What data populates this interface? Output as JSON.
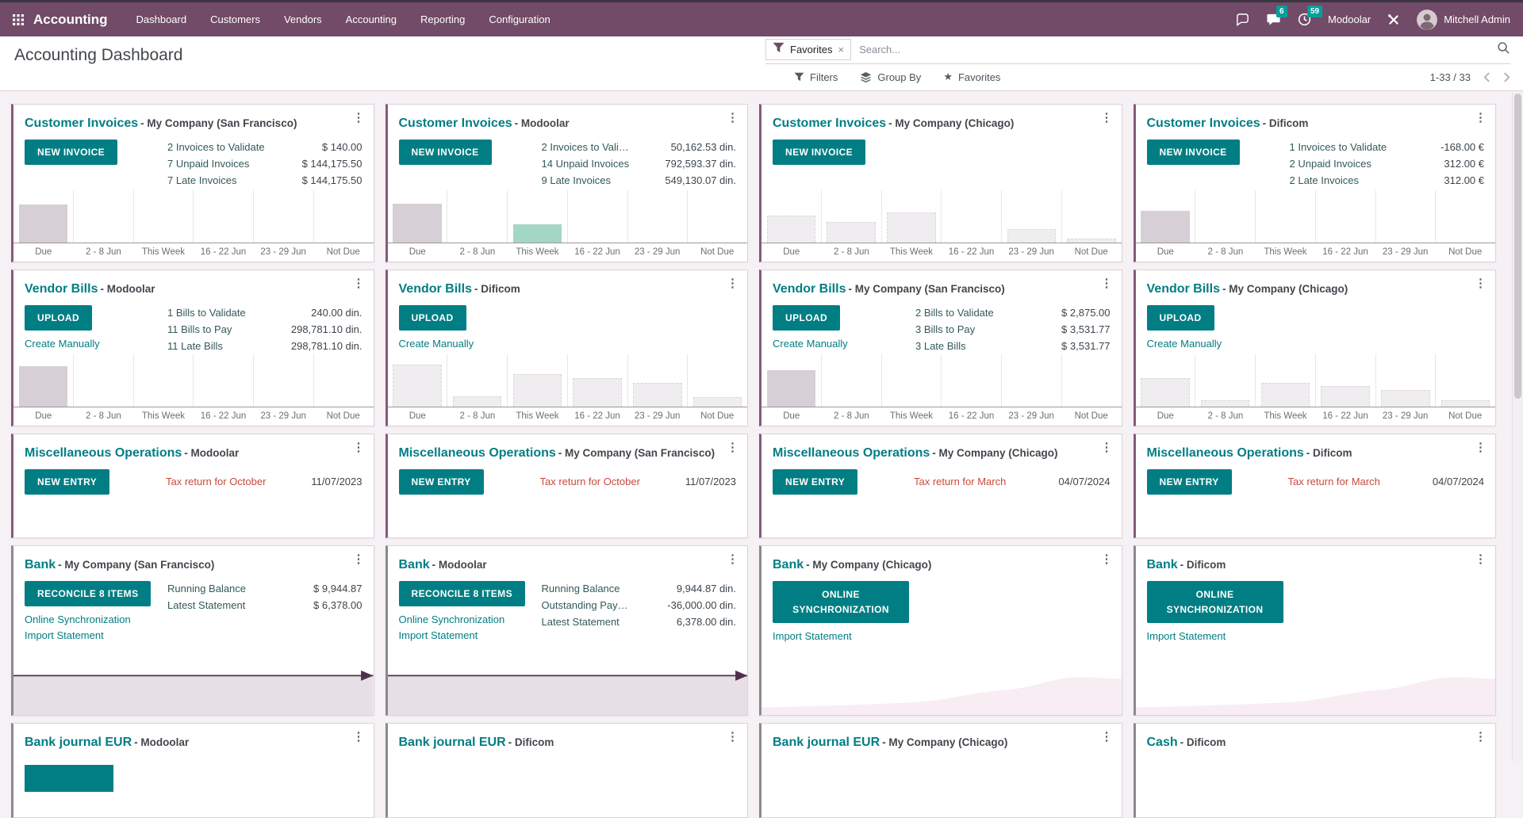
{
  "navbar": {
    "app_name": "Accounting",
    "menu": [
      "Dashboard",
      "Customers",
      "Vendors",
      "Accounting",
      "Reporting",
      "Configuration"
    ],
    "systray": {
      "messages_badge": "6",
      "activities_badge": "59",
      "company": "Modoolar",
      "user": "Mitchell Admin"
    }
  },
  "control_panel": {
    "title": "Accounting Dashboard",
    "search": {
      "facet_label": "Favorites",
      "placeholder": "Search..."
    },
    "filters_label": "Filters",
    "group_by_label": "Group By",
    "favorites_label": "Favorites",
    "pager": "1-33 / 33"
  },
  "icons": {
    "kebab": "⋮",
    "close": "×",
    "star": "★"
  },
  "colors": {
    "navbar": "#714B67",
    "primary_teal": "#017e84",
    "accent_purple": "#875A7B",
    "accent_gray": "#8b8b8b",
    "badge_teal": "#00A09A",
    "bar_solid": "#d6cfd5",
    "bar_accent": "#a4d6c6",
    "bar_ghost": "#f0edf0",
    "flatline_stroke": "#503049",
    "flatline_fill": "#e7dfe6",
    "hill_fill": "#f7edf3",
    "entry_red": "#c94a3c"
  },
  "chart_axis": [
    "Due",
    "2 - 8 Jun",
    "This Week",
    "16 - 22 Jun",
    "23 - 29 Jun",
    "Not Due"
  ],
  "cards": [
    {
      "type": "Customer Invoices",
      "company": "- My Company (San Francisco)",
      "accent": "#875A7B",
      "button": "NEW INVOICE",
      "links": [],
      "stats": [
        {
          "label": "2 Invoices to Validate",
          "value": "$ 140.00"
        },
        {
          "label": "7 Unpaid Invoices",
          "value": "$ 144,175.50"
        },
        {
          "label": "7 Late Invoices",
          "value": "$ 144,175.50"
        }
      ],
      "chart": {
        "kind": "bar",
        "bars": [
          {
            "h": 0.72,
            "style": "solid"
          },
          {
            "h": 0
          },
          {
            "h": 0
          },
          {
            "h": 0
          },
          {
            "h": 0
          },
          {
            "h": 0
          }
        ]
      }
    },
    {
      "type": "Customer Invoices",
      "company": "- Modoolar",
      "accent": "#875A7B",
      "button": "NEW INVOICE",
      "links": [],
      "stats": [
        {
          "label": "2 Invoices to Vali…",
          "value": "50,162.53 din."
        },
        {
          "label": "14 Unpaid Invoices",
          "value": "792,593.37 din."
        },
        {
          "label": "9 Late Invoices",
          "value": "549,130.07 din."
        }
      ],
      "chart": {
        "kind": "bar",
        "bars": [
          {
            "h": 0.75,
            "style": "solid"
          },
          {
            "h": 0
          },
          {
            "h": 0.35,
            "style": "accent"
          },
          {
            "h": 0
          },
          {
            "h": 0
          },
          {
            "h": 0
          }
        ]
      }
    },
    {
      "type": "Customer Invoices",
      "company": "- My Company (Chicago)",
      "accent": "#875A7B",
      "button": "NEW INVOICE",
      "links": [],
      "stats": [],
      "chart": {
        "kind": "bar",
        "bars": [
          {
            "h": 0.52,
            "style": "ghost"
          },
          {
            "h": 0.4,
            "style": "ghost"
          },
          {
            "h": 0.58,
            "style": "ghost"
          },
          {
            "h": 0
          },
          {
            "h": 0.26,
            "style": "ghost"
          },
          {
            "h": 0.08,
            "style": "ghost"
          }
        ]
      }
    },
    {
      "type": "Customer Invoices",
      "company": "- Dificom",
      "accent": "#875A7B",
      "button": "NEW INVOICE",
      "links": [],
      "stats": [
        {
          "label": "1 Invoices to Validate",
          "value": "-168.00 €"
        },
        {
          "label": "2 Unpaid Invoices",
          "value": "312.00 €"
        },
        {
          "label": "2 Late Invoices",
          "value": "312.00 €"
        }
      ],
      "chart": {
        "kind": "bar",
        "bars": [
          {
            "h": 0.6,
            "style": "solid"
          },
          {
            "h": 0
          },
          {
            "h": 0
          },
          {
            "h": 0
          },
          {
            "h": 0
          },
          {
            "h": 0
          }
        ]
      }
    },
    {
      "type": "Vendor Bills",
      "company": "- Modoolar",
      "accent": "#875A7B",
      "button": "UPLOAD",
      "links": [
        "Create Manually"
      ],
      "stats": [
        {
          "label": "1 Bills to Validate",
          "value": "240.00 din."
        },
        {
          "label": "11 Bills to Pay",
          "value": "298,781.10 din."
        },
        {
          "label": "11 Late Bills",
          "value": "298,781.10 din."
        }
      ],
      "chart": {
        "kind": "bar",
        "bars": [
          {
            "h": 0.78,
            "style": "solid"
          },
          {
            "h": 0
          },
          {
            "h": 0
          },
          {
            "h": 0
          },
          {
            "h": 0
          },
          {
            "h": 0
          }
        ]
      }
    },
    {
      "type": "Vendor Bills",
      "company": "- Dificom",
      "accent": "#875A7B",
      "button": "UPLOAD",
      "links": [
        "Create Manually"
      ],
      "stats": [],
      "chart": {
        "kind": "bar",
        "bars": [
          {
            "h": 0.8,
            "style": "ghost"
          },
          {
            "h": 0.2,
            "style": "ghost"
          },
          {
            "h": 0.62,
            "style": "ghost"
          },
          {
            "h": 0.55,
            "style": "ghost"
          },
          {
            "h": 0.45,
            "style": "ghost"
          },
          {
            "h": 0.18,
            "style": "ghost"
          }
        ]
      }
    },
    {
      "type": "Vendor Bills",
      "company": "- My Company (San Francisco)",
      "accent": "#875A7B",
      "button": "UPLOAD",
      "links": [
        "Create Manually"
      ],
      "stats": [
        {
          "label": "2 Bills to Validate",
          "value": "$ 2,875.00"
        },
        {
          "label": "3 Bills to Pay",
          "value": "$ 3,531.77"
        },
        {
          "label": "3 Late Bills",
          "value": "$ 3,531.77"
        }
      ],
      "chart": {
        "kind": "bar",
        "bars": [
          {
            "h": 0.7,
            "style": "solid"
          },
          {
            "h": 0
          },
          {
            "h": 0
          },
          {
            "h": 0
          },
          {
            "h": 0
          },
          {
            "h": 0
          }
        ]
      }
    },
    {
      "type": "Vendor Bills",
      "company": "- My Company (Chicago)",
      "accent": "#875A7B",
      "button": "UPLOAD",
      "links": [
        "Create Manually"
      ],
      "stats": [],
      "chart": {
        "kind": "bar",
        "bars": [
          {
            "h": 0.55,
            "style": "ghost"
          },
          {
            "h": 0.12,
            "style": "ghost"
          },
          {
            "h": 0.45,
            "style": "ghost"
          },
          {
            "h": 0.4,
            "style": "ghost"
          },
          {
            "h": 0.32,
            "style": "ghost"
          },
          {
            "h": 0.12,
            "style": "ghost"
          }
        ]
      }
    },
    {
      "type": "Miscellaneous Operations",
      "company": "- Modoolar",
      "accent": "#875A7B",
      "button": "NEW ENTRY",
      "links": [],
      "stats": [],
      "entry": {
        "label": "Tax return for October",
        "date": "11/07/2023"
      }
    },
    {
      "type": "Miscellaneous Operations",
      "company": "- My Company (San Francisco)",
      "accent": "#875A7B",
      "button": "NEW ENTRY",
      "links": [],
      "stats": [],
      "entry": {
        "label": "Tax return for October",
        "date": "11/07/2023"
      }
    },
    {
      "type": "Miscellaneous Operations",
      "company": "- My Company (Chicago)",
      "accent": "#875A7B",
      "button": "NEW ENTRY",
      "links": [],
      "stats": [],
      "entry": {
        "label": "Tax return for March",
        "date": "04/07/2024"
      }
    },
    {
      "type": "Miscellaneous Operations",
      "company": "- Dificom",
      "accent": "#875A7B",
      "button": "NEW ENTRY",
      "links": [],
      "stats": [],
      "entry": {
        "label": "Tax return for March",
        "date": "04/07/2024"
      }
    },
    {
      "type": "Bank",
      "company": "- My Company (San Francisco)",
      "accent": "#8b8b8b",
      "button": "RECONCILE 8 ITEMS",
      "links": [
        "Online Synchronization",
        "Import Statement"
      ],
      "stats": [
        {
          "label": "Running Balance",
          "value": "$ 9,944.87"
        },
        {
          "label": "Latest Statement",
          "value": "$ 6,378.00"
        }
      ],
      "chart": {
        "kind": "flatline"
      }
    },
    {
      "type": "Bank",
      "company": "- Modoolar",
      "accent": "#8b8b8b",
      "button": "RECONCILE 8 ITEMS",
      "links": [
        "Online Synchronization",
        "Import Statement"
      ],
      "stats": [
        {
          "label": "Running Balance",
          "value": "9,944.87 din."
        },
        {
          "label": "Outstanding Pay…",
          "value": "-36,000.00 din."
        },
        {
          "label": "Latest Statement",
          "value": "6,378.00 din."
        }
      ],
      "chart": {
        "kind": "flatline"
      }
    },
    {
      "type": "Bank",
      "company": "- My Company (Chicago)",
      "accent": "#8b8b8b",
      "button": "ONLINE SYNCHRONIZATION",
      "button_wide": true,
      "links": [
        "Import Statement"
      ],
      "stats": [],
      "chart": {
        "kind": "hill"
      }
    },
    {
      "type": "Bank",
      "company": "- Dificom",
      "accent": "#8b8b8b",
      "button": "ONLINE SYNCHRONIZATION",
      "button_wide": true,
      "links": [
        "Import Statement"
      ],
      "stats": [],
      "chart": {
        "kind": "hill"
      }
    },
    {
      "type": "Bank journal EUR",
      "company": "- Modoolar",
      "accent": "#8b8b8b",
      "links": [],
      "stats": [],
      "cut_button": true
    },
    {
      "type": "Bank journal EUR",
      "company": "- Dificom",
      "accent": "#8b8b8b",
      "links": [],
      "stats": []
    },
    {
      "type": "Bank journal EUR",
      "company": "- My Company (Chicago)",
      "accent": "#8b8b8b",
      "links": [],
      "stats": []
    },
    {
      "type": "Cash",
      "company": "- Dificom",
      "accent": "#8b8b8b",
      "links": [],
      "stats": []
    }
  ]
}
